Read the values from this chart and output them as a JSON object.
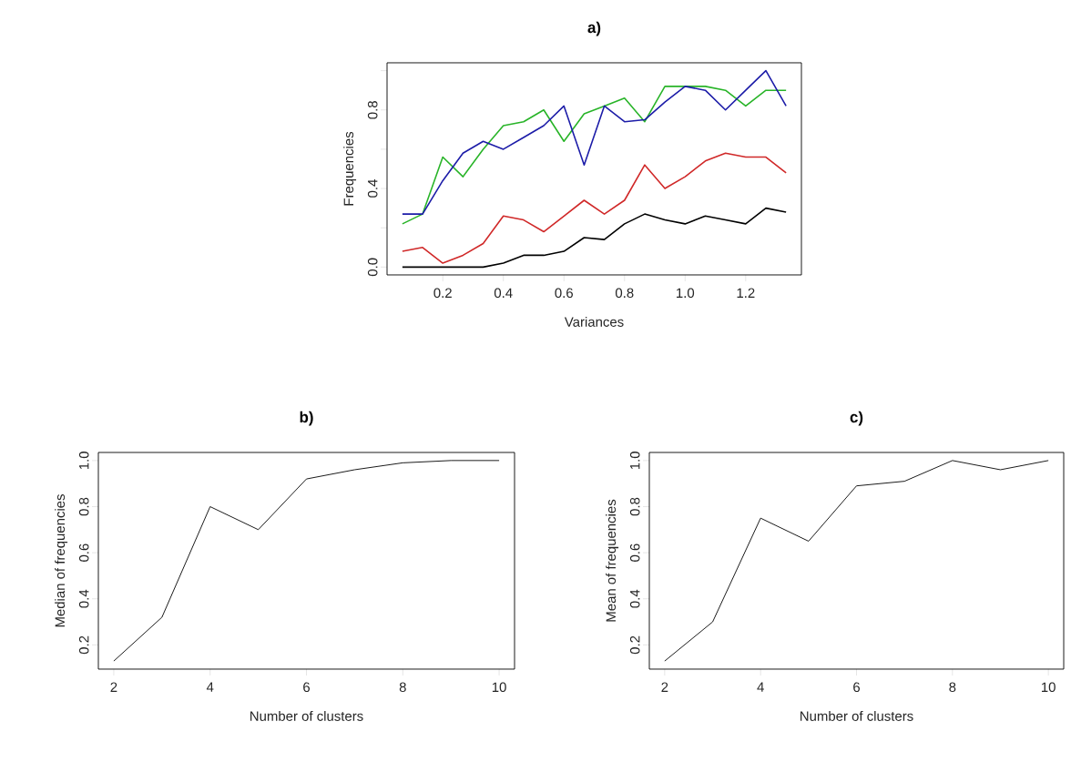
{
  "chart_data": [
    {
      "type": "line",
      "title": "a)",
      "xlabel": "Variances",
      "ylabel": "Frequencies",
      "x": [
        0.0667,
        0.1333,
        0.2,
        0.2667,
        0.3333,
        0.4,
        0.4667,
        0.5333,
        0.6,
        0.6667,
        0.7333,
        0.8,
        0.8667,
        0.9333,
        1.0,
        1.0667,
        1.1333,
        1.2,
        1.2667,
        1.3333
      ],
      "series": [
        {
          "color": "#000000",
          "values": [
            0,
            0,
            0,
            0,
            0,
            0.02,
            0.06,
            0.06,
            0.08,
            0.15,
            0.14,
            0.22,
            0.27,
            0.24,
            0.22,
            0.26,
            0.24,
            0.22,
            0.3,
            0.28
          ]
        },
        {
          "color": "#d02828",
          "values": [
            0.08,
            0.1,
            0.02,
            0.06,
            0.12,
            0.26,
            0.24,
            0.18,
            0.26,
            0.34,
            0.27,
            0.34,
            0.52,
            0.4,
            0.46,
            0.54,
            0.58,
            0.56,
            0.56,
            0.48
          ]
        },
        {
          "color": "#28b428",
          "values": [
            0.22,
            0.27,
            0.56,
            0.46,
            0.6,
            0.72,
            0.74,
            0.8,
            0.64,
            0.78,
            0.82,
            0.86,
            0.74,
            0.92,
            0.92,
            0.92,
            0.9,
            0.82,
            0.9,
            0.9
          ]
        },
        {
          "color": "#1c1ca8",
          "values": [
            0.27,
            0.27,
            0.44,
            0.58,
            0.64,
            0.6,
            0.66,
            0.72,
            0.82,
            0.52,
            0.82,
            0.74,
            0.75,
            0.84,
            0.92,
            0.9,
            0.8,
            0.9,
            1.0,
            0.82
          ]
        }
      ],
      "xlim": [
        0.016,
        1.384
      ],
      "ylim": [
        -0.04,
        1.04
      ],
      "xticks": [
        0.2,
        0.4,
        0.6,
        0.8,
        {
          "value": 1.0,
          "label": "1.0"
        },
        1.2
      ],
      "yticks": [
        {
          "value": 0,
          "label": "0.0"
        },
        {
          "value": 0.2,
          "label": null
        },
        0.4,
        {
          "value": 0.6,
          "label": null
        },
        0.8,
        {
          "value": 1.0,
          "label": null
        }
      ]
    },
    {
      "type": "line",
      "title": "b)",
      "xlabel": "Number of clusters",
      "ylabel": "Median of frequencies",
      "x": [
        2,
        3,
        4,
        5,
        6,
        7,
        8,
        9,
        10
      ],
      "series": [
        {
          "color": "#000000",
          "values": [
            0.13,
            0.32,
            0.8,
            0.7,
            0.92,
            0.96,
            0.99,
            1.0,
            1.0
          ]
        }
      ],
      "xlim": [
        1.68,
        10.32
      ],
      "ylim": [
        0.095,
        1.035
      ],
      "xticks": [
        2,
        4,
        6,
        8,
        10
      ],
      "yticks": [
        0.2,
        0.4,
        0.6,
        0.8,
        {
          "value": 1.0,
          "label": "1.0"
        }
      ]
    },
    {
      "type": "line",
      "title": "c)",
      "xlabel": "Number of clusters",
      "ylabel": "Mean of frequencies",
      "x": [
        2,
        3,
        4,
        5,
        6,
        7,
        8,
        9,
        10
      ],
      "series": [
        {
          "color": "#000000",
          "values": [
            0.13,
            0.3,
            0.75,
            0.65,
            0.89,
            0.91,
            1.0,
            0.96,
            1.0
          ]
        }
      ],
      "xlim": [
        1.68,
        10.32
      ],
      "ylim": [
        0.095,
        1.035
      ],
      "xticks": [
        2,
        4,
        6,
        8,
        10
      ],
      "yticks": [
        0.2,
        0.4,
        0.6,
        0.8,
        {
          "value": 1.0,
          "label": "1.0"
        }
      ]
    }
  ]
}
